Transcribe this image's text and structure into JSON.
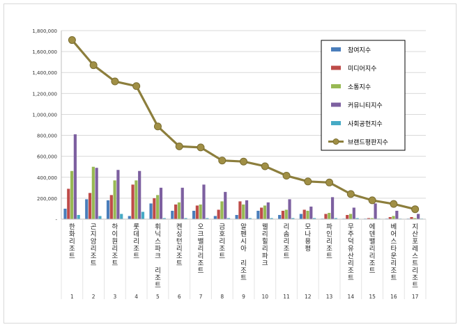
{
  "chart_data": {
    "type": "bar",
    "categories": [
      "한화리조트",
      "곤지암리조트",
      "하이원리조트",
      "롯데리조트",
      "휘닉스파크 리조트",
      "켄싱턴리조트",
      "오크밸리리조트",
      "금호리조트",
      "알펜시아 리조트",
      "웰리힐리파크",
      "리솜리조트",
      "모나용평",
      "파인리조트",
      "무주덕유산리조트",
      "에덴밸리리조트",
      "베어스타운리조트",
      "지산포레스트리조트"
    ],
    "ranks": [
      "1",
      "2",
      "3",
      "4",
      "5",
      "6",
      "7",
      "8",
      "9",
      "10",
      "11",
      "12",
      "13",
      "14",
      "15",
      "16",
      "17"
    ],
    "ylim": [
      0,
      1800000
    ],
    "yticks": [
      "-",
      "200,000",
      "400,000",
      "600,000",
      "800,000",
      "1,000,000",
      "1,200,000",
      "1,400,000",
      "1,600,000",
      "1,800,000"
    ],
    "grid": true,
    "legend_position": "right",
    "series": [
      {
        "name": "참여지수",
        "type": "bar",
        "color": "#4a7ebb",
        "values": [
          100000,
          190000,
          180000,
          30000,
          150000,
          80000,
          80000,
          30000,
          40000,
          80000,
          40000,
          50000,
          5000,
          5000,
          5000,
          5000,
          5000
        ]
      },
      {
        "name": "미디어지수",
        "type": "bar",
        "color": "#be4b48",
        "values": [
          290000,
          250000,
          230000,
          330000,
          200000,
          140000,
          130000,
          90000,
          170000,
          110000,
          80000,
          90000,
          50000,
          40000,
          10000,
          20000,
          20000
        ]
      },
      {
        "name": "소통지수",
        "type": "bar",
        "color": "#98b954",
        "values": [
          460000,
          500000,
          370000,
          370000,
          230000,
          160000,
          140000,
          170000,
          140000,
          130000,
          90000,
          80000,
          60000,
          50000,
          10000,
          30000,
          10000
        ]
      },
      {
        "name": "커뮤니티지수",
        "type": "bar",
        "color": "#7d60a0",
        "values": [
          810000,
          490000,
          470000,
          460000,
          300000,
          300000,
          330000,
          260000,
          180000,
          160000,
          190000,
          120000,
          210000,
          110000,
          150000,
          80000,
          50000
        ]
      },
      {
        "name": "사회공헌지수",
        "type": "bar",
        "color": "#46aac5",
        "values": [
          40000,
          30000,
          50000,
          70000,
          10000,
          10000,
          10000,
          10000,
          10000,
          10000,
          10000,
          10000,
          10000,
          10000,
          5000,
          5000,
          5000
        ]
      },
      {
        "name": "브랜드평판지수",
        "type": "line",
        "color": "#8c7e3c",
        "values": [
          1710000,
          1470000,
          1315000,
          1270000,
          885000,
          695000,
          685000,
          560000,
          550000,
          505000,
          415000,
          360000,
          350000,
          240000,
          180000,
          145000,
          95000
        ]
      }
    ]
  }
}
